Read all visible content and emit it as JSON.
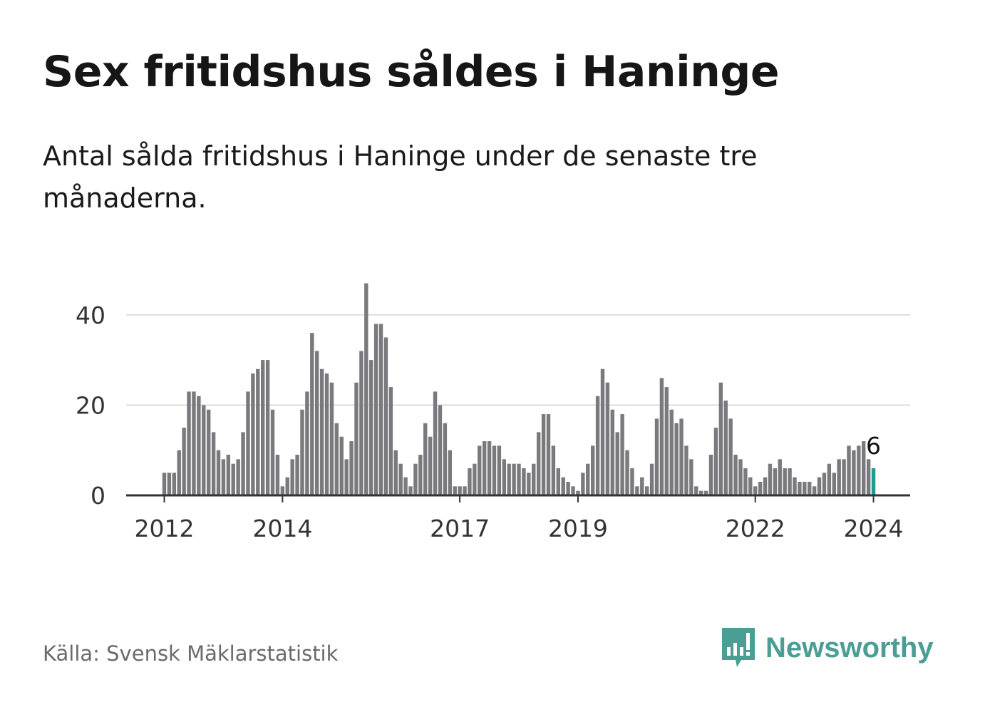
{
  "header": {
    "title": "Sex fritidshus såldes i Haninge",
    "subtitle": "Antal sålda fritidshus i Haninge under de senaste tre månaderna."
  },
  "footer": {
    "source": "Källa: Svensk Mäklarstatistik",
    "brand": "Newsworthy"
  },
  "colors": {
    "bar": "#7a797e",
    "highlight": "#1a9e8f",
    "grid": "#dddddd",
    "axis": "#333333",
    "brand": "#4a9e93"
  },
  "icons": {
    "brand_logo": "chart-bubble-icon"
  },
  "chart_data": {
    "type": "bar",
    "title": "Sex fritidshus såldes i Haninge",
    "xlabel": "",
    "ylabel": "",
    "ylim": [
      0,
      47
    ],
    "yticks": [
      0,
      20,
      40
    ],
    "xticks": [
      "2012",
      "2014",
      "2017",
      "2019",
      "2022",
      "2024"
    ],
    "grid": true,
    "legend": "none",
    "annotation": {
      "text": "6",
      "category": "2024-01"
    },
    "categories": [
      "2012-01",
      "2012-02",
      "2012-03",
      "2012-04",
      "2012-05",
      "2012-06",
      "2012-07",
      "2012-08",
      "2012-09",
      "2012-10",
      "2012-11",
      "2012-12",
      "2013-01",
      "2013-02",
      "2013-03",
      "2013-04",
      "2013-05",
      "2013-06",
      "2013-07",
      "2013-08",
      "2013-09",
      "2013-10",
      "2013-11",
      "2013-12",
      "2014-01",
      "2014-02",
      "2014-03",
      "2014-04",
      "2014-05",
      "2014-06",
      "2014-07",
      "2014-08",
      "2014-09",
      "2014-10",
      "2014-11",
      "2014-12",
      "2015-01",
      "2015-02",
      "2015-03",
      "2015-04",
      "2015-05",
      "2015-06",
      "2015-07",
      "2015-08",
      "2015-09",
      "2015-10",
      "2015-11",
      "2015-12",
      "2016-01",
      "2016-02",
      "2016-03",
      "2016-04",
      "2016-05",
      "2016-06",
      "2016-07",
      "2016-08",
      "2016-09",
      "2016-10",
      "2016-11",
      "2016-12",
      "2017-01",
      "2017-02",
      "2017-03",
      "2017-04",
      "2017-05",
      "2017-06",
      "2017-07",
      "2017-08",
      "2017-09",
      "2017-10",
      "2017-11",
      "2017-12",
      "2018-01",
      "2018-02",
      "2018-03",
      "2018-04",
      "2018-05",
      "2018-06",
      "2018-07",
      "2018-08",
      "2018-09",
      "2018-10",
      "2018-11",
      "2018-12",
      "2019-01",
      "2019-02",
      "2019-03",
      "2019-04",
      "2019-05",
      "2019-06",
      "2019-07",
      "2019-08",
      "2019-09",
      "2019-10",
      "2019-11",
      "2019-12",
      "2020-01",
      "2020-02",
      "2020-03",
      "2020-04",
      "2020-05",
      "2020-06",
      "2020-07",
      "2020-08",
      "2020-09",
      "2020-10",
      "2020-11",
      "2020-12",
      "2021-01",
      "2021-02",
      "2021-03",
      "2021-04",
      "2021-05",
      "2021-06",
      "2021-07",
      "2021-08",
      "2021-09",
      "2021-10",
      "2021-11",
      "2021-12",
      "2022-01",
      "2022-02",
      "2022-03",
      "2022-04",
      "2022-05",
      "2022-06",
      "2022-07",
      "2022-08",
      "2022-09",
      "2022-10",
      "2022-11",
      "2022-12",
      "2023-01",
      "2023-02",
      "2023-03",
      "2023-04",
      "2023-05",
      "2023-06",
      "2023-07",
      "2023-08",
      "2023-09",
      "2023-10",
      "2023-11",
      "2023-12",
      "2024-01"
    ],
    "values": [
      5,
      5,
      5,
      10,
      15,
      23,
      23,
      22,
      20,
      19,
      14,
      10,
      8,
      9,
      7,
      8,
      14,
      23,
      27,
      28,
      30,
      30,
      19,
      9,
      2,
      4,
      8,
      9,
      19,
      23,
      36,
      32,
      28,
      27,
      25,
      16,
      13,
      8,
      12,
      25,
      32,
      47,
      30,
      38,
      38,
      35,
      24,
      10,
      7,
      4,
      2,
      7,
      9,
      16,
      13,
      23,
      20,
      16,
      10,
      2,
      2,
      2,
      6,
      7,
      11,
      12,
      12,
      11,
      11,
      8,
      7,
      7,
      7,
      6,
      5,
      7,
      14,
      18,
      18,
      11,
      6,
      4,
      3,
      2,
      1,
      5,
      7,
      11,
      22,
      28,
      25,
      19,
      14,
      18,
      10,
      6,
      2,
      4,
      2,
      7,
      17,
      26,
      24,
      19,
      16,
      17,
      11,
      8,
      2,
      1,
      1,
      9,
      15,
      25,
      21,
      17,
      9,
      8,
      6,
      4,
      2,
      3,
      4,
      7,
      6,
      8,
      6,
      6,
      4,
      3,
      3,
      3,
      2,
      4,
      5,
      7,
      5,
      8,
      8,
      11,
      10,
      11,
      12,
      8,
      6
    ],
    "highlight_category": "2024-01"
  }
}
